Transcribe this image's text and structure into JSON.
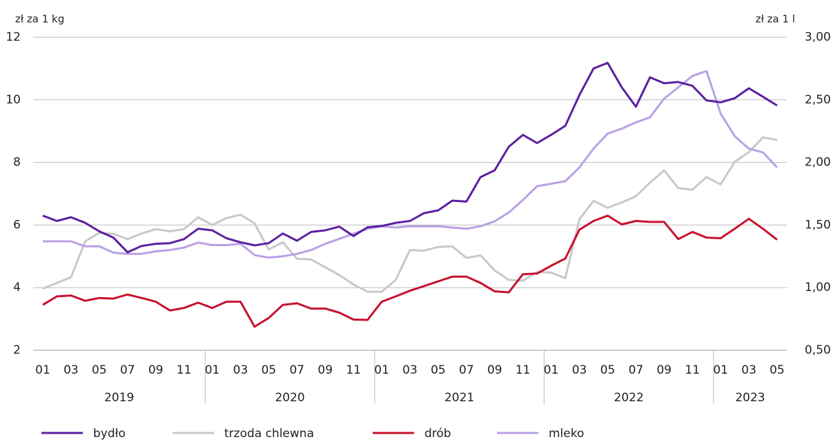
{
  "chart_data": {
    "type": "line",
    "y_label": "zł za 1 kg",
    "y2_label": "zł za 1 l",
    "categories": [
      "01",
      null,
      "03",
      null,
      "05",
      null,
      "07",
      null,
      "09",
      null,
      "11",
      null,
      "01",
      null,
      "03",
      null,
      "05",
      null,
      "07",
      null,
      "09",
      null,
      "11",
      null,
      "01",
      null,
      "03",
      null,
      "05",
      null,
      "07",
      null,
      "09",
      null,
      "11",
      null,
      "01",
      null,
      "03",
      null,
      "05",
      null,
      "07",
      null,
      "09",
      null,
      "11",
      null,
      "01",
      null,
      "03",
      null,
      "05"
    ],
    "years": [
      "2019",
      "2020",
      "2021",
      "2022",
      "2023"
    ],
    "ylim": [
      2,
      12
    ],
    "yticks": [
      2,
      4,
      6,
      8,
      10,
      12
    ],
    "y2lim": [
      0.5,
      3.0
    ],
    "y2ticks": [
      {
        "value": 0.5,
        "label": "0,50"
      },
      {
        "value": 1.0,
        "label": "1,00"
      },
      {
        "value": 1.5,
        "label": "1,50"
      },
      {
        "value": 2.0,
        "label": "2,00"
      },
      {
        "value": 2.5,
        "label": "2,50"
      },
      {
        "value": 3.0,
        "label": "3,00"
      }
    ],
    "grid": true,
    "legend": "bottom",
    "series": [
      {
        "name": "bydło",
        "color": "#5b1fa0",
        "values": [
          6.3,
          6.13,
          6.25,
          6.07,
          5.8,
          5.6,
          5.13,
          5.33,
          5.4,
          5.42,
          5.55,
          5.88,
          5.83,
          5.58,
          5.45,
          5.35,
          5.42,
          5.73,
          5.5,
          5.78,
          5.83,
          5.95,
          5.65,
          5.93,
          5.97,
          6.07,
          6.13,
          6.38,
          6.47,
          6.78,
          6.75,
          7.53,
          7.75,
          8.5,
          8.88,
          8.62,
          8.88,
          9.17,
          10.15,
          11.0,
          11.18,
          10.4,
          9.78,
          10.72,
          10.53,
          10.57,
          10.45,
          9.98,
          9.92,
          10.05,
          10.37,
          10.1,
          9.82
        ]
      },
      {
        "name": "trzoda chlewna",
        "color": "#c8c8c8",
        "values": [
          3.97,
          4.15,
          4.33,
          5.48,
          5.75,
          5.72,
          5.55,
          5.73,
          5.87,
          5.8,
          5.87,
          6.25,
          6.0,
          6.22,
          6.33,
          6.05,
          5.22,
          5.45,
          4.92,
          4.9,
          4.65,
          4.4,
          4.1,
          3.87,
          3.87,
          4.25,
          5.2,
          5.18,
          5.3,
          5.32,
          4.95,
          5.03,
          4.55,
          4.25,
          4.22,
          4.5,
          4.48,
          4.3,
          6.18,
          6.77,
          6.55,
          6.72,
          6.92,
          7.35,
          7.75,
          7.18,
          7.13,
          7.53,
          7.3,
          8.02,
          8.33,
          8.8,
          8.72
        ]
      },
      {
        "name": "drób",
        "color": "#c8102e",
        "values": [
          3.45,
          3.72,
          3.75,
          3.58,
          3.67,
          3.65,
          3.78,
          3.67,
          3.55,
          3.27,
          3.35,
          3.52,
          3.35,
          3.55,
          3.55,
          2.75,
          3.03,
          3.45,
          3.5,
          3.33,
          3.33,
          3.2,
          2.98,
          2.97,
          3.55,
          3.72,
          3.9,
          4.05,
          4.2,
          4.35,
          4.35,
          4.15,
          3.88,
          3.85,
          4.43,
          4.45,
          4.7,
          4.93,
          5.85,
          6.13,
          6.3,
          6.02,
          6.13,
          6.1,
          6.1,
          5.55,
          5.78,
          5.6,
          5.58,
          5.88,
          6.2,
          5.88,
          5.53
        ]
      },
      {
        "name": "mleko",
        "color": "#b9a0e6",
        "axis": "y2",
        "values": [
          1.37,
          1.37,
          1.37,
          1.33,
          1.33,
          1.28,
          1.27,
          1.27,
          1.29,
          1.3,
          1.32,
          1.36,
          1.34,
          1.34,
          1.35,
          1.26,
          1.24,
          1.25,
          1.27,
          1.3,
          1.35,
          1.39,
          1.43,
          1.47,
          1.49,
          1.48,
          1.49,
          1.49,
          1.49,
          1.48,
          1.47,
          1.49,
          1.53,
          1.6,
          1.7,
          1.81,
          1.83,
          1.85,
          1.96,
          2.11,
          2.23,
          2.27,
          2.32,
          2.36,
          2.51,
          2.6,
          2.69,
          2.73,
          2.39,
          2.21,
          2.11,
          2.08,
          1.96
        ]
      }
    ]
  }
}
